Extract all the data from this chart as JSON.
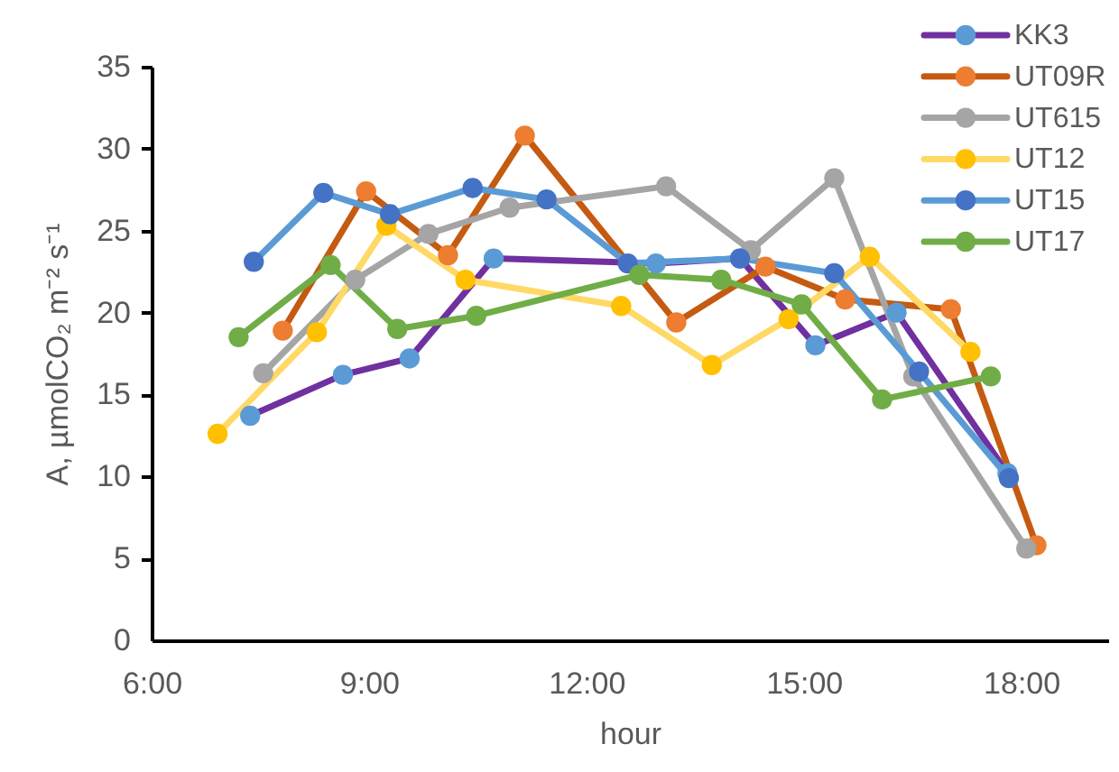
{
  "chart_data": {
    "type": "line",
    "xlabel": "hour",
    "ylabel": "A, µmolCO₂ m⁻² s⁻¹",
    "xlim": [
      6,
      19.2
    ],
    "xticks": [
      {
        "value": 6,
        "label": "6:00"
      },
      {
        "value": 9,
        "label": "9:00"
      },
      {
        "value": 12,
        "label": "12:00"
      },
      {
        "value": 15,
        "label": "15:00"
      },
      {
        "value": 18,
        "label": "18:00"
      }
    ],
    "ylim": [
      0,
      35
    ],
    "yticks": [
      0,
      5,
      10,
      15,
      20,
      25,
      30,
      35
    ],
    "grid": false,
    "legend": "top right",
    "marker": "circle",
    "series": [
      {
        "name": "KK3",
        "color": "#7030a0",
        "colors": [
          "#5b9bd5",
          "#5b9bd5",
          "#5b9bd5",
          "#5b9bd5",
          "#5b9bd5",
          "#5b9bd5",
          "#5b9bd5",
          "#5b9bd5",
          "#5b9bd5"
        ],
        "x": [
          7.36,
          8.64,
          9.56,
          10.72,
          12.96,
          14.12,
          15.16,
          16.28,
          17.81
        ],
        "values": [
          13.7,
          16.2,
          17.2,
          23.3,
          23.0,
          23.3,
          18.0,
          20.0,
          10.2
        ]
      },
      {
        "name": "UT09R",
        "color": "#c55a11",
        "colors": [
          "#ed7d31",
          "#ed7d31",
          "#ed7d31",
          "#ed7d31",
          "#ed7d31",
          "#ed7d31",
          "#ed7d31",
          "#ed7d31",
          "#ed7d31"
        ],
        "x": [
          7.81,
          8.96,
          10.09,
          11.15,
          13.24,
          14.47,
          15.57,
          17.03,
          18.21
        ],
        "values": [
          18.9,
          27.4,
          23.5,
          30.8,
          19.4,
          22.8,
          20.8,
          20.2,
          5.8
        ]
      },
      {
        "name": "UT615",
        "color": "#a5a5a5",
        "x": [
          7.54,
          8.81,
          9.82,
          10.94,
          13.1,
          14.27,
          15.42,
          16.51,
          18.07
        ],
        "values": [
          16.3,
          22.0,
          24.8,
          26.4,
          27.7,
          23.8,
          28.2,
          16.1,
          5.6
        ]
      },
      {
        "name": "UT12",
        "color": "#ffd966",
        "colors": [
          "#ffc000",
          "#ffc000",
          "#ffc000",
          "#ffc000",
          "#ffc000",
          "#ffc000",
          "#ffc000",
          "#ffc000",
          "#ffc000"
        ],
        "x": [
          6.91,
          8.28,
          9.24,
          10.33,
          12.48,
          13.73,
          14.79,
          15.91,
          17.3
        ],
        "values": [
          12.6,
          18.8,
          25.3,
          22.0,
          20.4,
          16.8,
          19.6,
          23.4,
          17.6
        ]
      },
      {
        "name": "UT15",
        "color": "#5b9bd5",
        "colors": [
          "#4472c4",
          "#4472c4",
          "#4472c4",
          "#4472c4",
          "#4472c4",
          "#4472c4",
          "#4472c4",
          "#4472c4",
          "#4472c4",
          "#4472c4"
        ],
        "x": [
          7.41,
          8.37,
          9.29,
          10.43,
          11.45,
          12.57,
          14.12,
          15.42,
          16.59,
          17.83
        ],
        "values": [
          23.1,
          27.3,
          26.0,
          27.6,
          26.9,
          23.0,
          23.3,
          22.4,
          16.4,
          9.9
        ]
      },
      {
        "name": "UT17",
        "color": "#70ad47",
        "x": [
          7.2,
          8.47,
          9.39,
          10.48,
          12.73,
          13.86,
          14.97,
          16.08,
          17.58
        ],
        "values": [
          18.5,
          22.9,
          19.0,
          19.8,
          22.3,
          22.0,
          20.5,
          14.7,
          16.1
        ]
      }
    ]
  }
}
